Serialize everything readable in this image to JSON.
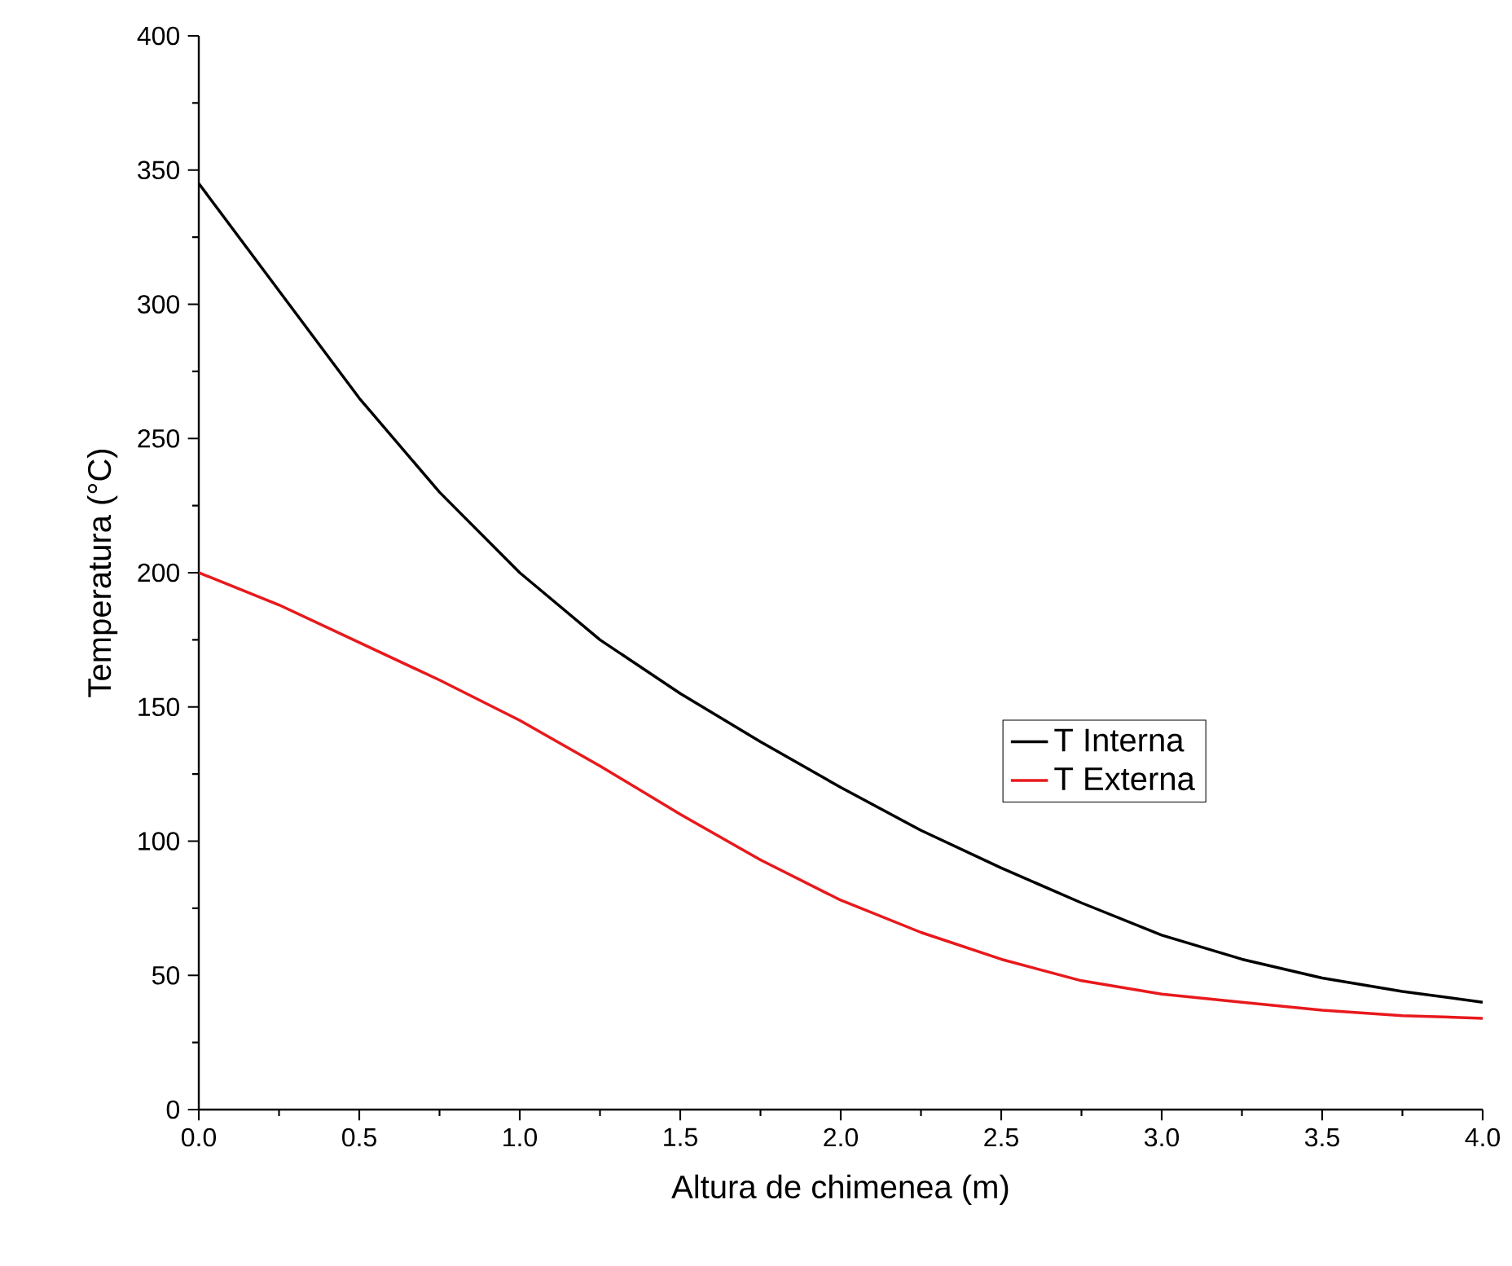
{
  "chart_data": {
    "type": "line",
    "xlabel": "Altura de chimenea (m)",
    "ylabel": "Temperatura (°C)",
    "x": [
      0,
      0.25,
      0.5,
      0.75,
      1.0,
      1.25,
      1.5,
      1.75,
      2.0,
      2.25,
      2.5,
      2.75,
      3.0,
      3.25,
      3.5,
      3.75,
      4.0
    ],
    "series": [
      {
        "name": "T Interna",
        "color": "#000000",
        "values": [
          345,
          305,
          265,
          230,
          200,
          175,
          155,
          137,
          120,
          104,
          90,
          77,
          65,
          56,
          49,
          44,
          40
        ]
      },
      {
        "name": "T Externa",
        "color": "#e8191c",
        "values": [
          200,
          188,
          174,
          160,
          145,
          128,
          110,
          93,
          78,
          66,
          56,
          48,
          43,
          40,
          37,
          35,
          34
        ]
      }
    ],
    "xlim": [
      0,
      4
    ],
    "ylim": [
      0,
      400
    ],
    "xticks": [
      {
        "value": 0,
        "label": "0.0"
      },
      0.5,
      {
        "value": 1,
        "label": "1.0"
      },
      1.5,
      {
        "value": 2,
        "label": "2.0"
      },
      2.5,
      {
        "value": 3,
        "label": "3.0"
      },
      3.5,
      {
        "value": 4,
        "label": "4.0"
      }
    ],
    "yticks": [
      0,
      50,
      100,
      150,
      200,
      250,
      300,
      350,
      400
    ],
    "legend": "right"
  }
}
